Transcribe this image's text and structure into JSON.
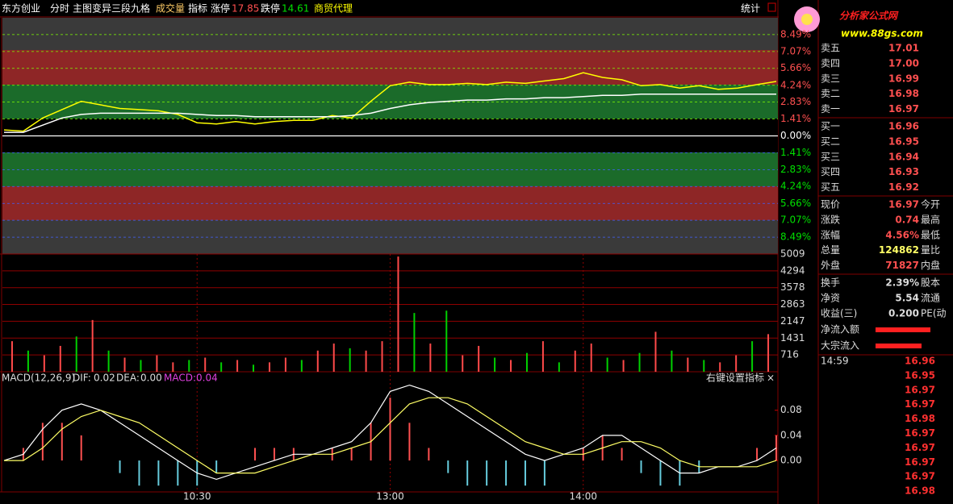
{
  "header": {
    "name": "东方创业",
    "view": "分时",
    "main_chart": "主图变异三段九格",
    "volume": "成交量",
    "indicator": "指标",
    "limit_up_label": "涨停",
    "limit_up": 17.85,
    "limit_down_label": "跌停",
    "limit_down": 14.61,
    "sector": "商贸代理",
    "stats": "统计"
  },
  "watermark": {
    "title": "分析家公式网",
    "url": "www.88gs.com"
  },
  "price_chart": {
    "type": "line",
    "xlim": [
      0,
      240
    ],
    "xticks": [
      {
        "value": 60,
        "label": "10:30"
      },
      {
        "value": 120,
        "label": "13:00"
      },
      {
        "value": 180,
        "label": "14:00"
      }
    ],
    "ylim": [
      -9.9,
      9.9
    ],
    "yticks": [
      {
        "value": 8.49,
        "label": "8.49%"
      },
      {
        "value": 7.07,
        "label": "7.07%"
      },
      {
        "value": 5.66,
        "label": "5.66%"
      },
      {
        "value": 4.24,
        "label": "4.24%"
      },
      {
        "value": 2.83,
        "label": "2.83%"
      },
      {
        "value": 1.41,
        "label": "1.41%"
      },
      {
        "value": 0,
        "label": "0.00%"
      },
      {
        "value": -1.41,
        "label": "1.41%"
      },
      {
        "value": -2.83,
        "label": "2.83%"
      },
      {
        "value": -4.24,
        "label": "4.24%"
      },
      {
        "value": -5.66,
        "label": "5.66%"
      },
      {
        "value": -7.07,
        "label": "7.07%"
      },
      {
        "value": -8.49,
        "label": "8.49%"
      }
    ],
    "series": [
      {
        "color": "#ffff00",
        "values": [
          0.5,
          0.4,
          1.5,
          2.2,
          2.9,
          2.6,
          2.3,
          2.2,
          2.1,
          1.8,
          1.1,
          1.0,
          1.2,
          1.0,
          1.2,
          1.3,
          1.3,
          1.7,
          1.5,
          2.9,
          4.2,
          4.5,
          4.3,
          4.3,
          4.4,
          4.3,
          4.5,
          4.4,
          4.6,
          4.8,
          5.3,
          4.9,
          4.7,
          4.2,
          4.3,
          4.0,
          4.2,
          3.9,
          4.0,
          4.3,
          4.56
        ]
      },
      {
        "color": "#ffffff",
        "values": [
          0.3,
          0.3,
          0.9,
          1.5,
          1.8,
          1.9,
          1.9,
          1.9,
          1.9,
          1.9,
          1.8,
          1.7,
          1.7,
          1.6,
          1.6,
          1.6,
          1.6,
          1.6,
          1.7,
          1.9,
          2.3,
          2.6,
          2.8,
          2.9,
          3.0,
          3.0,
          3.1,
          3.1,
          3.2,
          3.2,
          3.3,
          3.4,
          3.4,
          3.5,
          3.5,
          3.5,
          3.5,
          3.5,
          3.5,
          3.5,
          3.5
        ]
      }
    ]
  },
  "volume_chart": {
    "type": "bar",
    "ylim": [
      0,
      5009
    ],
    "yticks": [
      716,
      1431,
      2147,
      2863,
      3578,
      4294,
      5009
    ],
    "values": [
      1300,
      900,
      700,
      1100,
      1500,
      2200,
      900,
      600,
      500,
      700,
      400,
      500,
      600,
      400,
      500,
      300,
      400,
      600,
      500,
      900,
      1200,
      1000,
      900,
      1300,
      4900,
      2500,
      1200,
      2600,
      700,
      1100,
      600,
      500,
      800,
      1300,
      400,
      900,
      1200,
      600,
      500,
      800,
      1700,
      900,
      600,
      500,
      400,
      700,
      1300,
      1600
    ],
    "up": [
      true,
      false,
      true,
      true,
      false,
      true,
      false,
      true,
      false,
      true,
      true,
      false,
      true,
      false,
      true,
      false,
      true,
      true,
      false,
      true,
      true,
      false,
      true,
      true,
      true,
      false,
      true,
      false,
      true,
      true,
      false,
      true,
      false,
      true,
      false,
      true,
      true,
      false,
      true,
      false,
      true,
      false,
      true,
      false,
      true,
      true,
      false,
      true
    ],
    "up_color": "#ff4a4a",
    "down_color": "#00d000"
  },
  "macd_chart": {
    "type": "macd",
    "name": "MACD(12,26,9)",
    "dif_label": "DIF:",
    "dif": "0.02",
    "dea_label": "DEA:",
    "dea": "0.00",
    "macd_label": "MACD:",
    "macd": "0.04",
    "hint": "右键设置指标",
    "close": "×",
    "ylim": [
      -0.05,
      0.14
    ],
    "yticks": [
      {
        "value": 0.08,
        "label": "0.08"
      },
      {
        "value": 0.04,
        "label": "0.04"
      },
      {
        "value": 0,
        "label": "0.00"
      }
    ],
    "dif_values": [
      0.0,
      0.01,
      0.05,
      0.08,
      0.09,
      0.08,
      0.06,
      0.04,
      0.02,
      0.0,
      -0.02,
      -0.03,
      -0.02,
      -0.01,
      0.0,
      0.01,
      0.01,
      0.02,
      0.03,
      0.06,
      0.11,
      0.12,
      0.11,
      0.09,
      0.07,
      0.05,
      0.03,
      0.01,
      0.0,
      0.01,
      0.02,
      0.04,
      0.04,
      0.02,
      0.0,
      -0.02,
      -0.02,
      -0.01,
      -0.01,
      0.0,
      0.02
    ],
    "dea_values": [
      0.0,
      0.0,
      0.02,
      0.05,
      0.07,
      0.08,
      0.07,
      0.06,
      0.04,
      0.02,
      0.0,
      -0.02,
      -0.02,
      -0.02,
      -0.01,
      0.0,
      0.01,
      0.01,
      0.02,
      0.03,
      0.06,
      0.09,
      0.1,
      0.1,
      0.09,
      0.07,
      0.05,
      0.03,
      0.02,
      0.01,
      0.01,
      0.02,
      0.03,
      0.03,
      0.02,
      0.0,
      -0.01,
      -0.01,
      -0.01,
      -0.01,
      0.0
    ],
    "macd_values": [
      0,
      0.02,
      0.06,
      0.06,
      0.04,
      0,
      -0.02,
      -0.04,
      -0.04,
      -0.04,
      -0.04,
      -0.02,
      0,
      0.02,
      0.02,
      0.02,
      0,
      0.02,
      0.02,
      0.06,
      0.1,
      0.06,
      0.02,
      -0.02,
      -0.04,
      -0.04,
      -0.04,
      -0.04,
      -0.04,
      0,
      0.02,
      0.04,
      0.02,
      -0.02,
      -0.04,
      -0.04,
      -0.02,
      0,
      0,
      0.02,
      0.04
    ]
  },
  "order_book": {
    "asks": [
      [
        "卖五",
        "17.01"
      ],
      [
        "卖四",
        "17.00"
      ],
      [
        "卖三",
        "16.99"
      ],
      [
        "卖二",
        "16.98"
      ],
      [
        "卖一",
        "16.97"
      ]
    ],
    "bids": [
      [
        "买一",
        "16.96"
      ],
      [
        "买二",
        "16.95"
      ],
      [
        "买三",
        "16.94"
      ],
      [
        "买四",
        "16.93"
      ],
      [
        "买五",
        "16.92"
      ]
    ]
  },
  "quote": [
    [
      "现价",
      "16.97",
      "今开"
    ],
    [
      "涨跌",
      "0.74",
      "最高"
    ],
    [
      "涨幅",
      "4.56%",
      "最低"
    ],
    [
      "总量",
      "124862",
      "量比"
    ],
    [
      "外盘",
      "71827",
      "内盘"
    ]
  ],
  "fundamentals": [
    [
      "换手",
      "2.39%",
      "股本"
    ],
    [
      "净资",
      "5.54",
      "流通"
    ],
    [
      "收益(三)",
      "0.200",
      "PE(动"
    ]
  ],
  "flows": [
    "净流入额",
    "大宗流入"
  ],
  "trades": {
    "time": "14:59",
    "prices": [
      "16.96",
      "16.95",
      "16.97",
      "16.97",
      "16.98",
      "16.97",
      "16.97",
      "16.97",
      "16.97",
      "16.98"
    ]
  }
}
